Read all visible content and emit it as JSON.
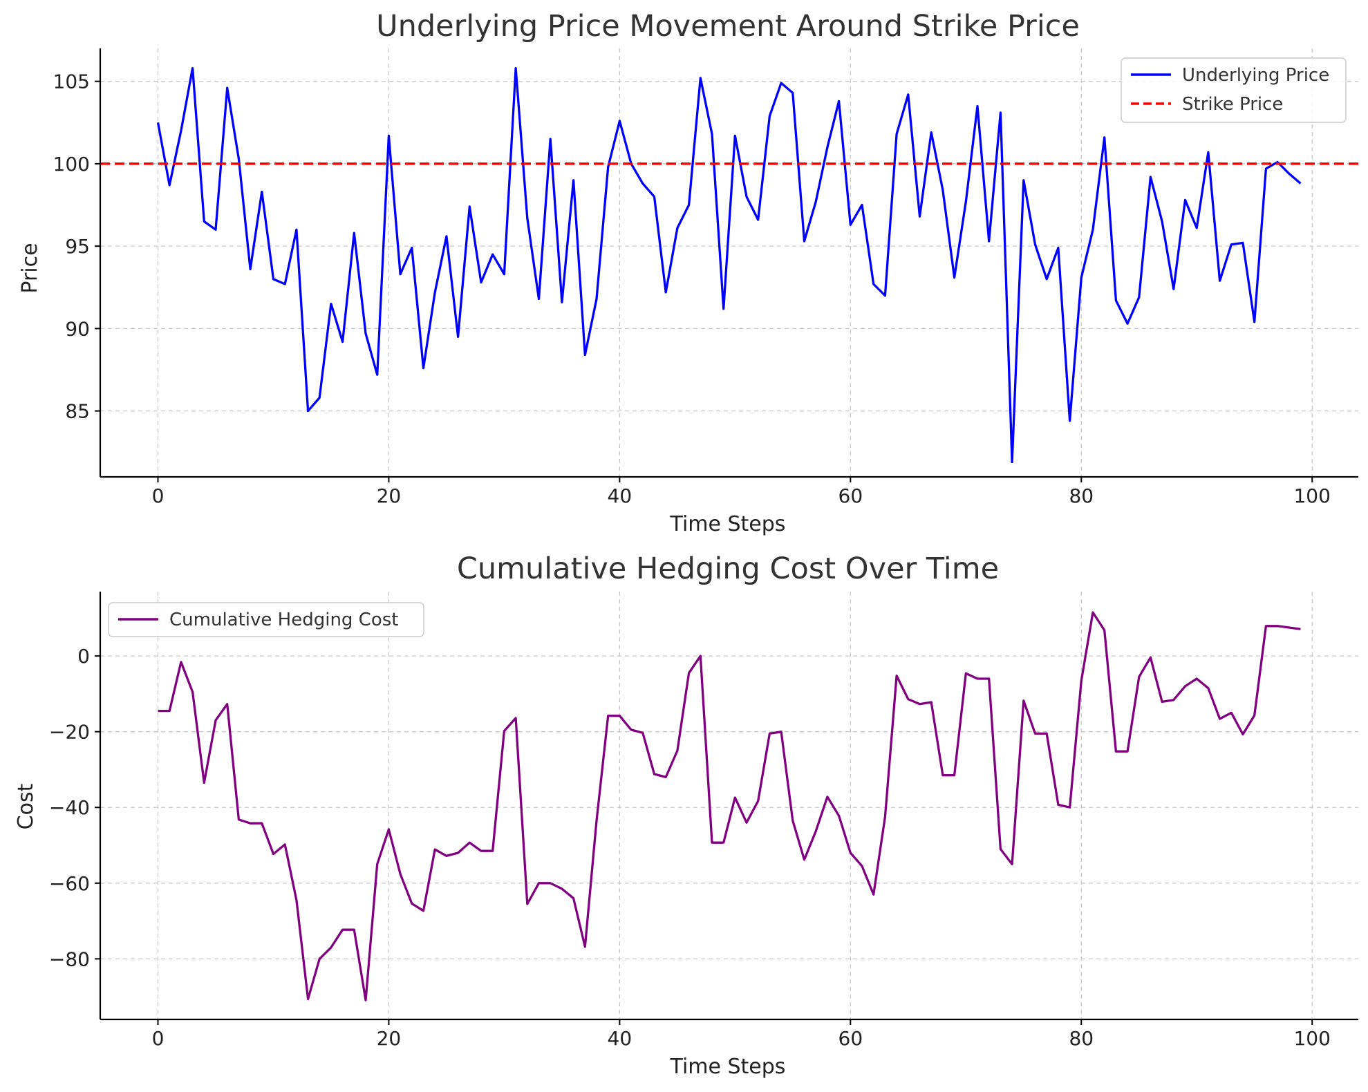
{
  "chart_data": [
    {
      "type": "line",
      "title": "Underlying Price Movement Around Strike Price",
      "xlabel": "Time Steps",
      "ylabel": "Price",
      "xlim": [
        -5,
        104
      ],
      "ylim": [
        81,
        107
      ],
      "xticks": [
        0,
        20,
        40,
        60,
        80,
        100
      ],
      "yticks": [
        85,
        90,
        95,
        100,
        105
      ],
      "grid": true,
      "legend_position": "top-right",
      "series": [
        {
          "name": "Underlying Price",
          "color": "#0000ff",
          "style": "solid",
          "values": [
            102.5,
            98.7,
            102.0,
            105.8,
            96.5,
            96.0,
            104.6,
            100.3,
            93.6,
            98.3,
            93.0,
            92.7,
            96.0,
            85.0,
            85.8,
            91.5,
            89.2,
            95.8,
            89.7,
            87.2,
            101.7,
            93.3,
            94.9,
            87.6,
            92.2,
            95.6,
            89.5,
            97.4,
            92.8,
            94.5,
            93.3,
            105.8,
            96.7,
            91.8,
            101.5,
            91.6,
            99.0,
            88.4,
            91.8,
            99.8,
            102.6,
            100.0,
            98.8,
            98.0,
            92.2,
            96.1,
            97.5,
            105.2,
            101.8,
            91.2,
            101.7,
            98.0,
            96.6,
            102.9,
            104.9,
            104.3,
            95.3,
            97.7,
            101.0,
            103.8,
            96.3,
            97.5,
            92.7,
            92.0,
            101.8,
            104.2,
            96.8,
            101.9,
            98.4,
            93.1,
            97.7,
            103.5,
            95.3,
            103.1,
            81.9,
            99.0,
            95.1,
            93.0,
            94.9,
            84.4,
            93.1,
            96.0,
            101.6,
            91.7,
            90.3,
            91.9,
            99.2,
            96.5,
            92.4,
            97.8,
            96.1,
            100.7,
            92.9,
            95.1,
            95.2,
            90.4,
            99.7,
            100.1,
            99.4,
            98.8
          ]
        },
        {
          "name": "Strike Price",
          "color": "#ff0000",
          "style": "dashed",
          "constant": 100
        }
      ]
    },
    {
      "type": "line",
      "title": "Cumulative Hedging Cost Over Time",
      "xlabel": "Time Steps",
      "ylabel": "Cost",
      "xlim": [
        -5,
        104
      ],
      "ylim": [
        -96,
        17
      ],
      "xticks": [
        0,
        20,
        40,
        60,
        80,
        100
      ],
      "yticks": [
        -80,
        -60,
        -40,
        -20,
        0
      ],
      "grid": true,
      "legend_position": "top-left",
      "series": [
        {
          "name": "Cumulative Hedging Cost",
          "color": "#800080",
          "style": "solid",
          "values": [
            -14.5,
            -14.5,
            -1.6,
            -9.5,
            -33.5,
            -17.0,
            -12.7,
            -43.2,
            -44.2,
            -44.2,
            -52.3,
            -49.8,
            -64.5,
            -90.6,
            -80.0,
            -77.0,
            -72.3,
            -72.3,
            -90.9,
            -55.0,
            -45.8,
            -57.6,
            -65.4,
            -67.3,
            -51.1,
            -52.8,
            -52.0,
            -49.3,
            -51.5,
            -51.5,
            -19.8,
            -16.4,
            -65.5,
            -60.0,
            -60.0,
            -61.5,
            -64.0,
            -76.8,
            -43.5,
            -15.8,
            -15.8,
            -19.5,
            -20.3,
            -31.2,
            -32.0,
            -25.0,
            -4.5,
            0.0,
            -49.3,
            -49.3,
            -37.4,
            -44.0,
            -38.3,
            -20.5,
            -20.0,
            -43.5,
            -53.8,
            -46.3,
            -37.2,
            -42.2,
            -52.0,
            -55.5,
            -63.0,
            -42.5,
            -5.2,
            -11.4,
            -12.7,
            -12.2,
            -31.5,
            -31.5,
            -4.6,
            -6.0,
            -6.0,
            -51.0,
            -55.0,
            -11.8,
            -20.5,
            -20.5,
            -39.3,
            -40.0,
            -6.5,
            11.5,
            6.8,
            -25.2,
            -25.2,
            -5.5,
            -0.4,
            -12.1,
            -11.6,
            -8.0,
            -6.0,
            -8.5,
            -16.6,
            -15.0,
            -20.7,
            -15.7,
            7.9,
            7.9,
            7.5,
            7.1
          ]
        }
      ]
    }
  ]
}
